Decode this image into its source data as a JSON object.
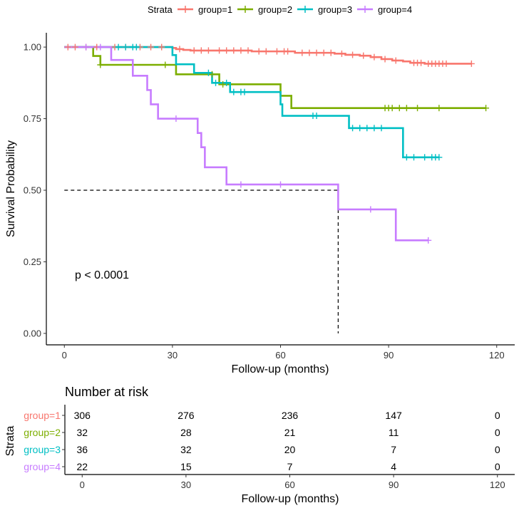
{
  "chart_data": [
    {
      "type": "line",
      "subtype": "kaplan-meier",
      "title": "",
      "xlabel": "Follow-up (months)",
      "ylabel": "Survival Probability",
      "xlim": [
        -5,
        125
      ],
      "ylim": [
        -0.04,
        1.05
      ],
      "xticks": [
        0,
        30,
        60,
        90,
        120
      ],
      "xtick_labels": [
        "0",
        "30",
        "60",
        "90",
        "120"
      ],
      "yticks": [
        0,
        0.25,
        0.5,
        0.75,
        1.0
      ],
      "ytick_labels": [
        "0.00",
        "0.25",
        "0.50",
        "0.75",
        "1.00"
      ],
      "legend_title": "Strata",
      "legend_position": "top",
      "annotation": "p < 0.0001",
      "median_line": {
        "y": 0.5,
        "x_start": 0,
        "x_end": 76
      },
      "series": [
        {
          "name": "group=1",
          "color": "#F8766D",
          "steps": [
            [
              0,
              1.0
            ],
            [
              30,
              0.997
            ],
            [
              31,
              0.993
            ],
            [
              33,
              0.99
            ],
            [
              35,
              0.988
            ],
            [
              52,
              0.985
            ],
            [
              64,
              0.98
            ],
            [
              75,
              0.977
            ],
            [
              78,
              0.973
            ],
            [
              82,
              0.97
            ],
            [
              85,
              0.965
            ],
            [
              88,
              0.958
            ],
            [
              91,
              0.953
            ],
            [
              94,
              0.95
            ],
            [
              96,
              0.945
            ],
            [
              100,
              0.942
            ],
            [
              113,
              0.942
            ]
          ],
          "censors": [
            [
              1,
              1.0
            ],
            [
              3,
              1.0
            ],
            [
              6,
              1.0
            ],
            [
              9,
              1.0
            ],
            [
              14,
              1.0
            ],
            [
              17,
              1.0
            ],
            [
              21,
              1.0
            ],
            [
              24,
              1.0
            ],
            [
              27,
              1.0
            ],
            [
              32,
              0.993
            ],
            [
              36,
              0.988
            ],
            [
              38,
              0.988
            ],
            [
              40,
              0.988
            ],
            [
              43,
              0.988
            ],
            [
              45,
              0.988
            ],
            [
              47,
              0.988
            ],
            [
              49,
              0.988
            ],
            [
              51,
              0.988
            ],
            [
              54,
              0.985
            ],
            [
              56,
              0.985
            ],
            [
              59,
              0.985
            ],
            [
              61,
              0.985
            ],
            [
              62,
              0.985
            ],
            [
              66,
              0.98
            ],
            [
              68,
              0.98
            ],
            [
              70,
              0.98
            ],
            [
              72,
              0.98
            ],
            [
              74,
              0.98
            ],
            [
              77,
              0.977
            ],
            [
              80,
              0.973
            ],
            [
              83,
              0.97
            ],
            [
              86,
              0.965
            ],
            [
              89,
              0.958
            ],
            [
              92,
              0.953
            ],
            [
              97,
              0.945
            ],
            [
              98,
              0.945
            ],
            [
              99,
              0.945
            ],
            [
              101,
              0.942
            ],
            [
              102,
              0.942
            ],
            [
              103,
              0.942
            ],
            [
              104,
              0.942
            ],
            [
              105,
              0.942
            ],
            [
              106,
              0.942
            ],
            [
              113,
              0.942
            ]
          ]
        },
        {
          "name": "group=2",
          "color": "#7CAE00",
          "steps": [
            [
              0,
              1.0
            ],
            [
              8,
              0.969
            ],
            [
              10,
              0.938
            ],
            [
              31,
              0.905
            ],
            [
              43,
              0.87
            ],
            [
              60,
              0.83
            ],
            [
              63,
              0.787
            ],
            [
              117,
              0.787
            ]
          ],
          "censors": [
            [
              10,
              0.938
            ],
            [
              28,
              0.938
            ],
            [
              41,
              0.905
            ],
            [
              44,
              0.87
            ],
            [
              89,
              0.787
            ],
            [
              90,
              0.787
            ],
            [
              91,
              0.787
            ],
            [
              93,
              0.787
            ],
            [
              95,
              0.787
            ],
            [
              98,
              0.787
            ],
            [
              104,
              0.787
            ],
            [
              117,
              0.787
            ]
          ]
        },
        {
          "name": "group=3",
          "color": "#00BFC4",
          "steps": [
            [
              0,
              1.0
            ],
            [
              30,
              0.972
            ],
            [
              31,
              0.94
            ],
            [
              36,
              0.91
            ],
            [
              41,
              0.875
            ],
            [
              46,
              0.843
            ],
            [
              60,
              0.8
            ],
            [
              60.5,
              0.76
            ],
            [
              79,
              0.717
            ],
            [
              94,
              0.615
            ],
            [
              104,
              0.615
            ]
          ],
          "censors": [
            [
              15,
              1.0
            ],
            [
              17,
              1.0
            ],
            [
              19,
              1.0
            ],
            [
              20,
              1.0
            ],
            [
              40,
              0.91
            ],
            [
              42,
              0.875
            ],
            [
              45,
              0.875
            ],
            [
              47,
              0.843
            ],
            [
              49,
              0.843
            ],
            [
              50,
              0.843
            ],
            [
              69,
              0.76
            ],
            [
              70,
              0.76
            ],
            [
              80,
              0.717
            ],
            [
              82,
              0.717
            ],
            [
              84,
              0.717
            ],
            [
              86,
              0.717
            ],
            [
              88,
              0.717
            ],
            [
              95,
              0.615
            ],
            [
              97,
              0.615
            ],
            [
              100,
              0.615
            ],
            [
              102,
              0.615
            ],
            [
              103,
              0.615
            ],
            [
              104,
              0.615
            ]
          ]
        },
        {
          "name": "group=4",
          "color": "#C77CFF",
          "steps": [
            [
              0,
              1.0
            ],
            [
              13,
              0.955
            ],
            [
              19,
              0.9
            ],
            [
              23,
              0.85
            ],
            [
              24,
              0.8
            ],
            [
              26,
              0.75
            ],
            [
              37,
              0.7
            ],
            [
              38,
              0.65
            ],
            [
              39,
              0.58
            ],
            [
              45,
              0.52
            ],
            [
              76,
              0.433
            ],
            [
              92,
              0.325
            ],
            [
              101,
              0.325
            ]
          ],
          "censors": [
            [
              6,
              1.0
            ],
            [
              10,
              1.0
            ],
            [
              31,
              0.75
            ],
            [
              49,
              0.52
            ],
            [
              60,
              0.52
            ],
            [
              85,
              0.433
            ],
            [
              101,
              0.325
            ]
          ]
        }
      ]
    },
    {
      "type": "table",
      "title": "Number at risk",
      "xlabel": "Follow-up (months)",
      "ylabel": "Strata",
      "xlim": [
        -5,
        125
      ],
      "columns": [
        0,
        30,
        60,
        90,
        120
      ],
      "column_labels": [
        "0",
        "30",
        "60",
        "90",
        "120"
      ],
      "rows": [
        {
          "name": "group=1",
          "color": "#F8766D",
          "values": [
            "306",
            "276",
            "236",
            "147",
            "0"
          ]
        },
        {
          "name": "group=2",
          "color": "#7CAE00",
          "values": [
            "32",
            "28",
            "21",
            "11",
            "0"
          ]
        },
        {
          "name": "group=3",
          "color": "#00BFC4",
          "values": [
            "36",
            "32",
            "20",
            "7",
            "0"
          ]
        },
        {
          "name": "group=4",
          "color": "#C77CFF",
          "values": [
            "22",
            "15",
            "7",
            "4",
            "0"
          ]
        }
      ]
    }
  ]
}
